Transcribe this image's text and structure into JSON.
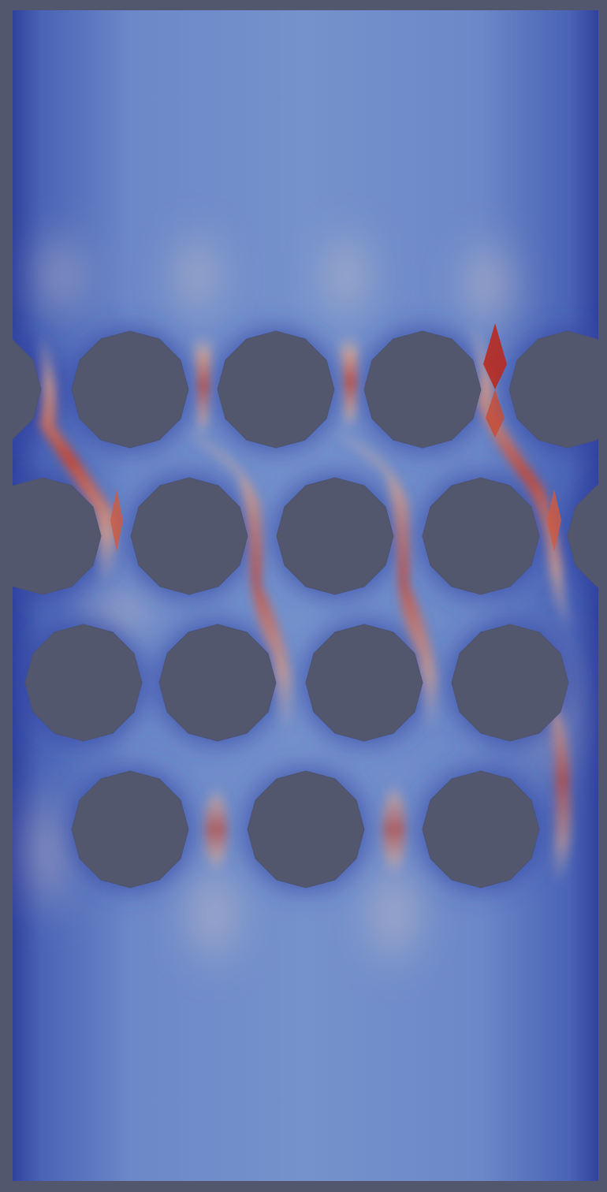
{
  "scene": {
    "description_type": "flow-field-visualization",
    "colormap": {
      "low": "#3b4cc0",
      "mid_low": "#6f8fd0",
      "mid": "#dddcdc",
      "mid_high": "#e8987b",
      "high": "#b40426"
    },
    "background_color": "#52576e",
    "obstacle_color": "#52576e",
    "obstacle_shape": "dodecagon",
    "obstacle_rows": 4
  }
}
